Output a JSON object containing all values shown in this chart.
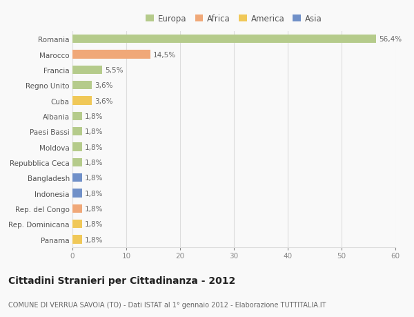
{
  "categories": [
    "Romania",
    "Marocco",
    "Francia",
    "Regno Unito",
    "Cuba",
    "Albania",
    "Paesi Bassi",
    "Moldova",
    "Repubblica Ceca",
    "Bangladesh",
    "Indonesia",
    "Rep. del Congo",
    "Rep. Dominicana",
    "Panama"
  ],
  "values": [
    56.4,
    14.5,
    5.5,
    3.6,
    3.6,
    1.8,
    1.8,
    1.8,
    1.8,
    1.8,
    1.8,
    1.8,
    1.8,
    1.8
  ],
  "labels": [
    "56,4%",
    "14,5%",
    "5,5%",
    "3,6%",
    "3,6%",
    "1,8%",
    "1,8%",
    "1,8%",
    "1,8%",
    "1,8%",
    "1,8%",
    "1,8%",
    "1,8%",
    "1,8%"
  ],
  "continents": [
    "Europa",
    "Africa",
    "Europa",
    "Europa",
    "America",
    "Europa",
    "Europa",
    "Europa",
    "Europa",
    "Asia",
    "Asia",
    "Africa",
    "America",
    "America"
  ],
  "colors": {
    "Europa": "#b5cb8b",
    "Africa": "#f0a878",
    "America": "#f0c858",
    "Asia": "#7090c8"
  },
  "legend_order": [
    "Europa",
    "Africa",
    "America",
    "Asia"
  ],
  "xlim": [
    0,
    60
  ],
  "xticks": [
    0,
    10,
    20,
    30,
    40,
    50,
    60
  ],
  "title": "Cittadini Stranieri per Cittadinanza - 2012",
  "subtitle": "COMUNE DI VERRUA SAVOIA (TO) - Dati ISTAT al 1° gennaio 2012 - Elaborazione TUTTITALIA.IT",
  "bg_color": "#f9f9f9",
  "grid_color": "#dddddd",
  "bar_height": 0.55,
  "label_fontsize": 7.5,
  "ytick_fontsize": 7.5,
  "xtick_fontsize": 7.5,
  "title_fontsize": 10,
  "subtitle_fontsize": 7,
  "legend_fontsize": 8.5
}
